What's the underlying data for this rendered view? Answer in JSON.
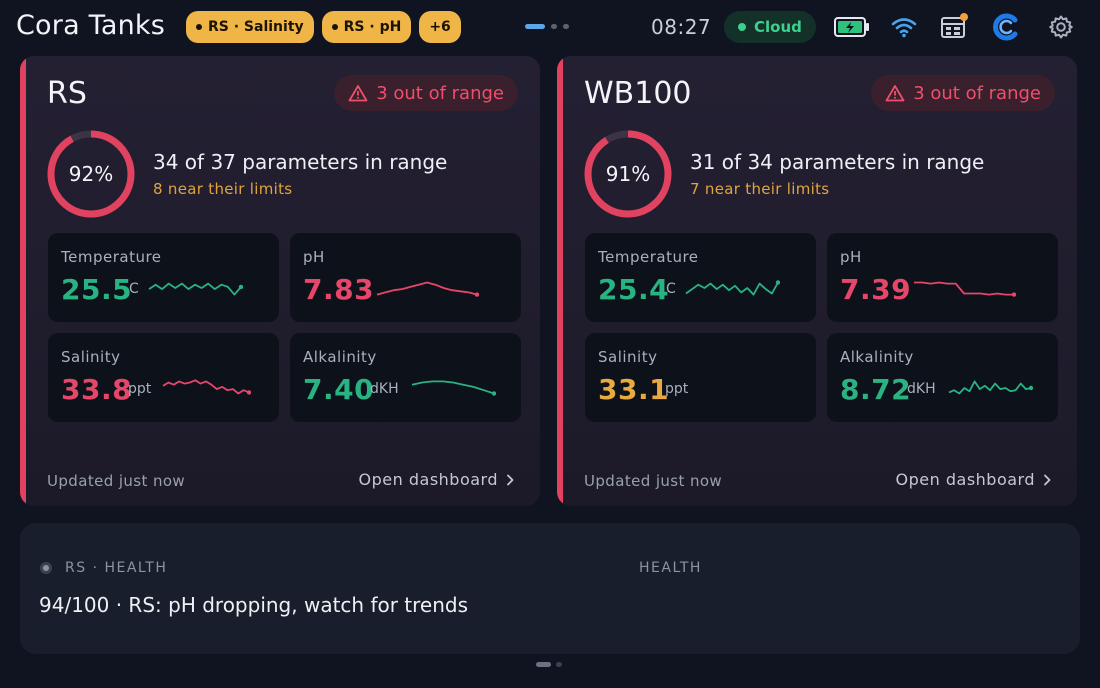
{
  "header": {
    "title": "Cora Tanks",
    "chips": [
      {
        "label": "RS · Salinity"
      },
      {
        "label": "RS · pH"
      },
      {
        "label": "+6"
      }
    ],
    "clock": "08:27",
    "cloud_label": "Cloud"
  },
  "colors": {
    "green": "#29b383",
    "red": "#e6466a",
    "amber": "#e9a93f",
    "alert": "#e0425f"
  },
  "tanks": [
    {
      "name": "RS",
      "alert": "3 out of range",
      "percent_label": "92%",
      "percent": 0.92,
      "summary": "34 of 37 parameters in range",
      "near": "8 near their limits",
      "tiles": [
        {
          "label": "Temperature",
          "value": "25.5",
          "unit": "C",
          "status": "green",
          "trend": [
            0.55,
            0.35,
            0.55,
            0.3,
            0.5,
            0.3,
            0.55,
            0.35,
            0.5,
            0.3,
            0.55,
            0.35,
            0.45,
            0.8,
            0.45
          ]
        },
        {
          "label": "pH",
          "value": "7.83",
          "unit": "",
          "status": "red",
          "trend": [
            0.8,
            0.7,
            0.6,
            0.55,
            0.45,
            0.35,
            0.25,
            0.35,
            0.5,
            0.6,
            0.65,
            0.7,
            0.8
          ]
        },
        {
          "label": "Salinity",
          "value": "33.8",
          "unit": "ppt",
          "status": "red",
          "trend": [
            0.4,
            0.25,
            0.35,
            0.2,
            0.3,
            0.25,
            0.15,
            0.3,
            0.2,
            0.35,
            0.55,
            0.45,
            0.6,
            0.55,
            0.75,
            0.6,
            0.7
          ]
        },
        {
          "label": "Alkalinity",
          "value": "7.40",
          "unit": "dKH",
          "status": "green",
          "trend": [
            0.35,
            0.25,
            0.2,
            0.2,
            0.25,
            0.35,
            0.45,
            0.6,
            0.75
          ]
        }
      ],
      "updated": "Updated just now",
      "open": "Open dashboard"
    },
    {
      "name": "WB100",
      "alert": "3 out of range",
      "percent_label": "91%",
      "percent": 0.91,
      "summary": "31 of 34 parameters in range",
      "near": "7 near their limits",
      "tiles": [
        {
          "label": "Temperature",
          "value": "25.4",
          "unit": "C",
          "status": "green",
          "trend": [
            0.75,
            0.55,
            0.35,
            0.5,
            0.3,
            0.55,
            0.35,
            0.6,
            0.4,
            0.7,
            0.5,
            0.8,
            0.3,
            0.55,
            0.75,
            0.25
          ]
        },
        {
          "label": "pH",
          "value": "7.39",
          "unit": "",
          "status": "red",
          "trend": [
            0.25,
            0.25,
            0.3,
            0.25,
            0.3,
            0.3,
            0.75,
            0.75,
            0.75,
            0.8,
            0.75,
            0.8,
            0.8
          ]
        },
        {
          "label": "Salinity",
          "value": "33.1",
          "unit": "ppt",
          "status": "amber",
          "trend": []
        },
        {
          "label": "Alkalinity",
          "value": "8.72",
          "unit": "dKH",
          "status": "green",
          "trend": [
            0.7,
            0.6,
            0.75,
            0.5,
            0.65,
            0.2,
            0.55,
            0.4,
            0.6,
            0.3,
            0.55,
            0.5,
            0.65,
            0.6,
            0.3,
            0.55,
            0.5
          ]
        }
      ],
      "updated": "Updated just now",
      "open": "Open dashboard"
    }
  ],
  "health": {
    "source": "RS · HEALTH",
    "category": "HEALTH",
    "message": "94/100 · RS: pH dropping, watch for trends"
  }
}
